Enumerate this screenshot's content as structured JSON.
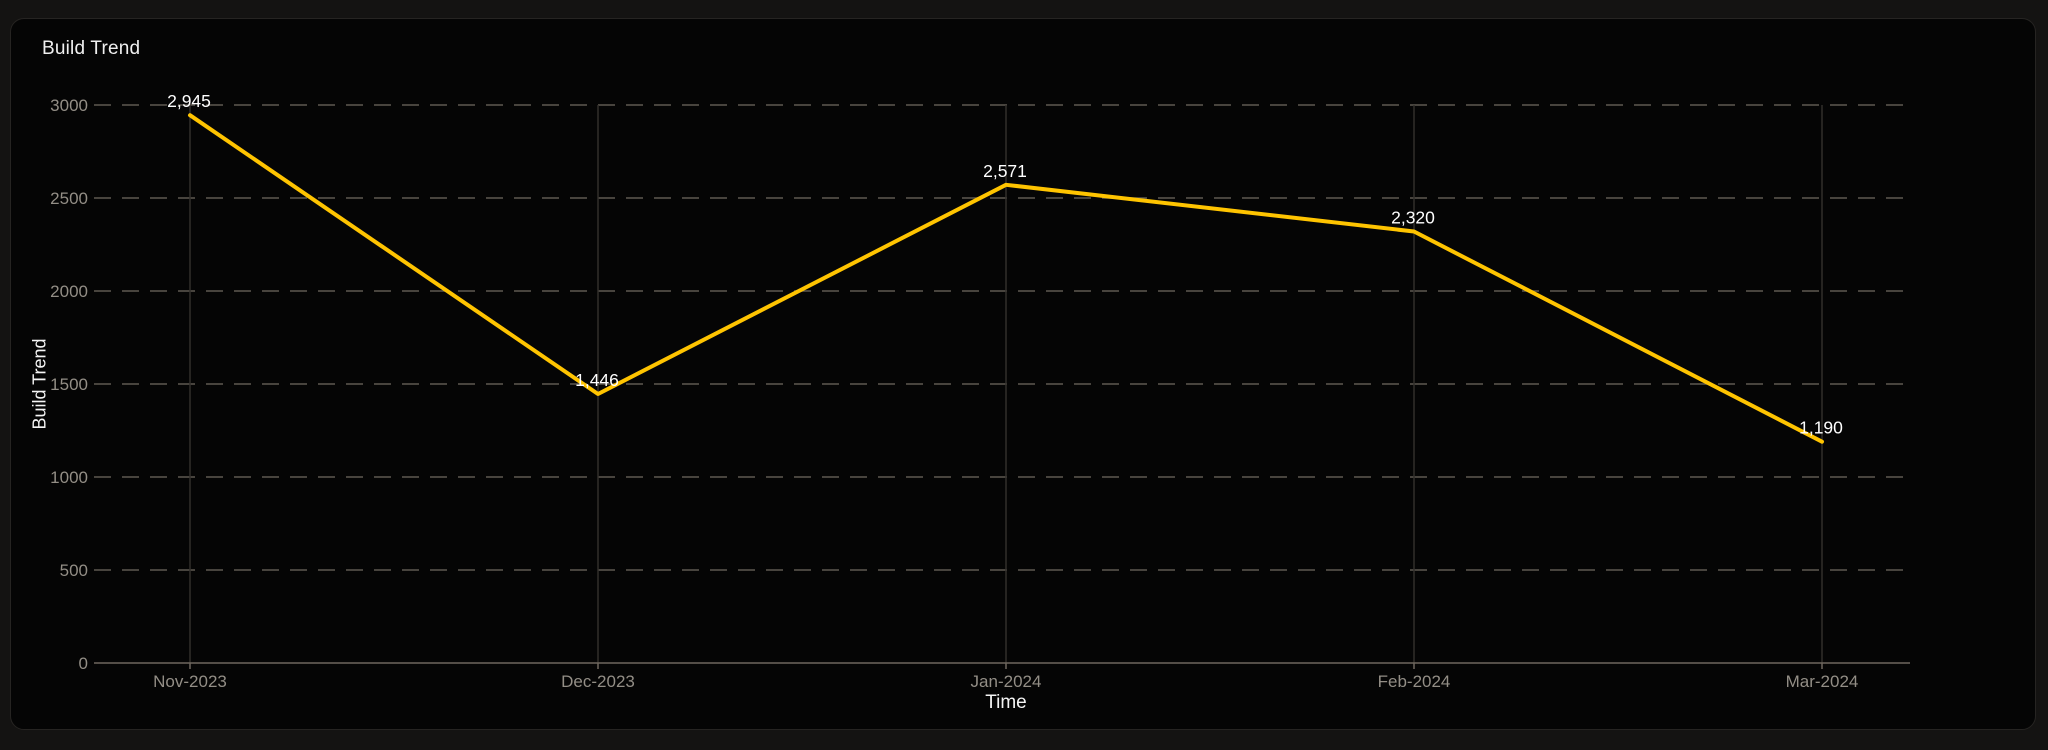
{
  "card": {
    "title": "Build Trend"
  },
  "chart_data": {
    "type": "line",
    "title": "Build Trend",
    "xlabel": "Time",
    "ylabel": "Build Trend",
    "categories": [
      "Nov-2023",
      "Dec-2023",
      "Jan-2024",
      "Feb-2024",
      "Mar-2024"
    ],
    "series": [
      {
        "name": "Build Trend",
        "values": [
          2945,
          1446,
          2571,
          2320,
          1190
        ]
      }
    ],
    "point_labels": [
      "2,945",
      "1,446",
      "2,571",
      "2,320",
      "1,190"
    ],
    "ytick_labels": [
      "0",
      "500",
      "1000",
      "1500",
      "2000",
      "2500",
      "3000"
    ],
    "yticks": [
      0,
      500,
      1000,
      1500,
      2000,
      2500,
      3000
    ],
    "ylim": [
      0,
      3000
    ],
    "grid": {
      "horizontal": "dashed",
      "vertical": "solid-faint"
    },
    "legend_position": "none",
    "colors": {
      "line": "#FFC400",
      "data_label": "#FFFFFF",
      "tick_label": "#938E86",
      "grid_dash": "#5F5A52",
      "axis_line": "#6E675E",
      "grid_vertical": "#322F2B",
      "card_background": "#050505",
      "page_background": "#141312",
      "card_border": "#262422",
      "title_text": "#F0F0F0"
    }
  }
}
